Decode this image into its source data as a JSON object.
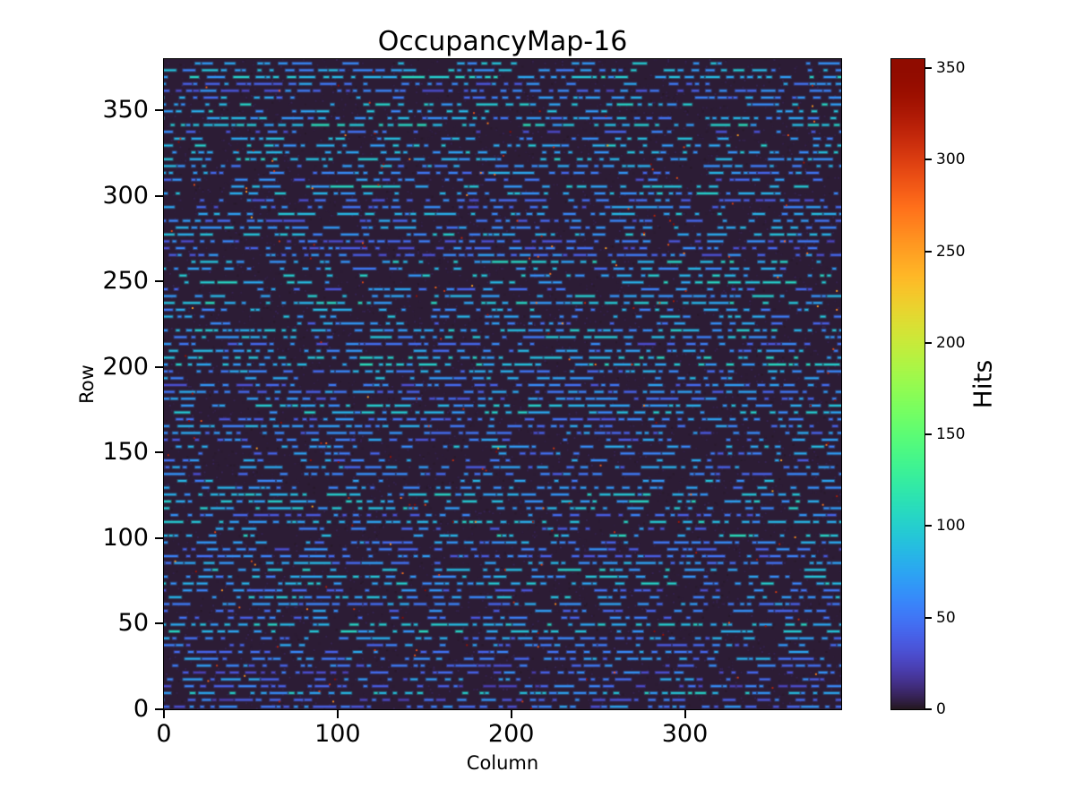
{
  "figure": {
    "background_color": "#ffffff",
    "text_color": "#000000",
    "spine_color": "#000000"
  },
  "chart_data": {
    "type": "heatmap",
    "title": "OccupancyMap-16",
    "xlabel": "Column",
    "ylabel": "Row",
    "colorbar_label": "Hits",
    "colormap": "turbo",
    "xlim": [
      0,
      390
    ],
    "ylim": [
      0,
      380
    ],
    "vmin": 0,
    "vmax": 355,
    "x_ticks": [
      0,
      100,
      200,
      300
    ],
    "y_ticks": [
      0,
      50,
      100,
      150,
      200,
      250,
      300,
      350
    ],
    "colorbar_ticks": [
      0,
      50,
      100,
      150,
      200,
      250,
      300,
      350
    ],
    "grid": false,
    "legend": "none",
    "description": "Pixel-detector occupancy map: ~390 columns x ~380 rows. Background is near-zero hits (dark purple, turbo colormap). Every 4th row forms a horizontal stripe of short dashes with moderate hit counts (~20-115 hits, blue tones). Rare isolated hot pixels reach up to ~355 hits (dark red specks). Colorbar 'Hits' spans 0 to ~355.",
    "colors": {
      "background_low": "#2e1c41",
      "dash_blue": "#4b5fd6",
      "dash_bright_blue": "#6f8df0",
      "hot_pixel_red": "#7a0403"
    },
    "pattern": {
      "nrows": 380,
      "ncols": 390,
      "background_value": 3,
      "stripe_period": 4,
      "stripe_phase": 1,
      "row_base_min": 20,
      "row_base_range": 50,
      "density_min": 0.45,
      "density_range": 0.4,
      "dash_extra": 45,
      "len_base": 2,
      "len_range": 12,
      "gap_min": 1,
      "gap_range": 5,
      "noise_count": 7000,
      "noise_max": 12,
      "speck_count": 200,
      "speck_min": 240,
      "speck_range": 115,
      "seed": 16
    }
  }
}
